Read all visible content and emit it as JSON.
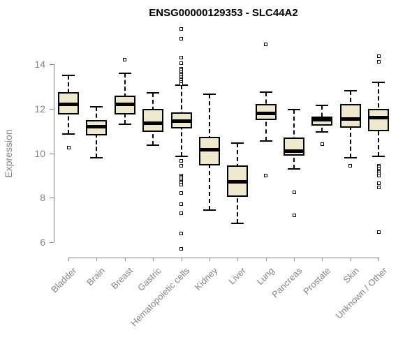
{
  "title": "ENSG00000129353 - SLC44A2",
  "chart_data": {
    "type": "boxplot",
    "title": "ENSG00000129353 - SLC44A2",
    "xlabel": "",
    "ylabel": "Expression",
    "yticks": [
      6,
      8,
      10,
      12,
      14
    ],
    "ylim": [
      5.4,
      15.9
    ],
    "grid": false,
    "legend": "none",
    "box_fill": "#EEE8CD",
    "box_border": "#000000",
    "axis_color": "#848484",
    "label_color": "#848484",
    "categories": [
      "Bladder",
      "Brain",
      "Breast",
      "Gastric",
      "Hematopoietic cells",
      "Kidney",
      "Liver",
      "Lung",
      "Pancreas",
      "Prostate",
      "Skin",
      "Unknown / Other"
    ],
    "series": [
      {
        "name": "Bladder",
        "whisker_low": 10.85,
        "q1": 11.75,
        "median": 12.2,
        "q3": 12.75,
        "whisker_high": 13.5,
        "outliers": [
          10.25
        ]
      },
      {
        "name": "Brain",
        "whisker_low": 9.8,
        "q1": 10.8,
        "median": 11.2,
        "q3": 11.5,
        "whisker_high": 12.1,
        "outliers": []
      },
      {
        "name": "Breast",
        "whisker_low": 11.3,
        "q1": 11.75,
        "median": 12.2,
        "q3": 12.6,
        "whisker_high": 13.6,
        "outliers": [
          14.2
        ]
      },
      {
        "name": "Gastric",
        "whisker_low": 10.35,
        "q1": 10.95,
        "median": 11.35,
        "q3": 12.0,
        "whisker_high": 12.7,
        "outliers": []
      },
      {
        "name": "Hematopoietic cells",
        "whisker_low": 9.85,
        "q1": 11.1,
        "median": 11.45,
        "q3": 11.85,
        "whisker_high": 13.05,
        "outliers": [
          15.6,
          15.15,
          14.3,
          14.05,
          13.8,
          13.72,
          13.65,
          13.58,
          13.5,
          13.42,
          13.35,
          13.28,
          13.2,
          13.12,
          9.65,
          9.42,
          9.0,
          8.93,
          8.86,
          8.79,
          8.72,
          8.65,
          8.58,
          8.2,
          7.7,
          7.3,
          6.4,
          5.7
        ]
      },
      {
        "name": "Kidney",
        "whisker_low": 7.45,
        "q1": 9.45,
        "median": 10.15,
        "q3": 10.75,
        "whisker_high": 12.65,
        "outliers": []
      },
      {
        "name": "Liver",
        "whisker_low": 6.85,
        "q1": 8.05,
        "median": 8.7,
        "q3": 9.45,
        "whisker_high": 10.45,
        "outliers": []
      },
      {
        "name": "Lung",
        "whisker_low": 10.55,
        "q1": 11.5,
        "median": 11.8,
        "q3": 12.2,
        "whisker_high": 12.75,
        "outliers": [
          14.9,
          9.0
        ]
      },
      {
        "name": "Pancreas",
        "whisker_low": 9.3,
        "q1": 9.9,
        "median": 10.1,
        "q3": 10.7,
        "whisker_high": 11.95,
        "outliers": [
          8.25,
          7.2
        ]
      },
      {
        "name": "Prostate",
        "whisker_low": 10.95,
        "q1": 11.25,
        "median": 11.5,
        "q3": 11.65,
        "whisker_high": 12.15,
        "outliers": [
          10.4
        ]
      },
      {
        "name": "Skin",
        "whisker_low": 9.8,
        "q1": 11.15,
        "median": 11.55,
        "q3": 12.2,
        "whisker_high": 12.8,
        "outliers": [
          9.45
        ]
      },
      {
        "name": "Unknown / Other",
        "whisker_low": 9.85,
        "q1": 11.0,
        "median": 11.6,
        "q3": 12.0,
        "whisker_high": 13.2,
        "outliers": [
          14.35,
          14.1,
          9.45,
          9.38,
          9.3,
          9.22,
          9.15,
          9.08,
          9.0,
          8.65,
          8.45,
          6.45
        ]
      }
    ]
  }
}
